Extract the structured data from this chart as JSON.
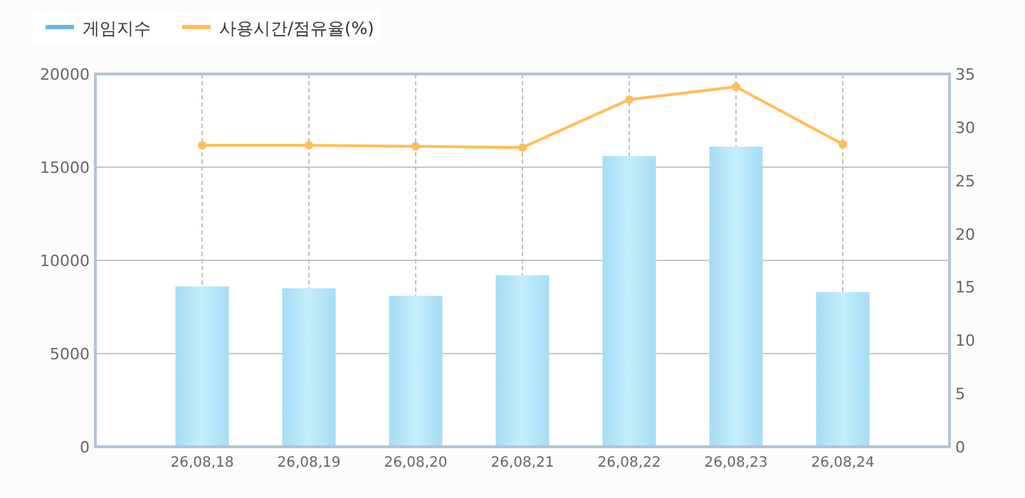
{
  "chart_data": {
    "type": "bar",
    "categories": [
      "26,08,18",
      "26,08,19",
      "26,08,20",
      "26,08,21",
      "26,08,22",
      "26,08,23",
      "26,08,24"
    ],
    "series": [
      {
        "name": "게임지수",
        "color": "#a6dcf5",
        "values": [
          8600,
          8500,
          8100,
          9200,
          15600,
          16100,
          8300
        ]
      },
      {
        "name": "사용시간/점유율(%)",
        "type": "line",
        "axis": "y2",
        "color": "#ffbf57",
        "marker": "circle",
        "values": [
          28.3,
          28.3,
          28.2,
          28.1,
          32.6,
          33.8,
          28.4
        ]
      }
    ],
    "ylim": [
      0,
      20000
    ],
    "yticks": [
      0,
      5000,
      10000,
      15000,
      20000
    ],
    "y2lim": [
      0,
      35
    ],
    "y2ticks": [
      0,
      5,
      10,
      15,
      20,
      25,
      30,
      35
    ],
    "grid": true,
    "legend": "top left"
  }
}
